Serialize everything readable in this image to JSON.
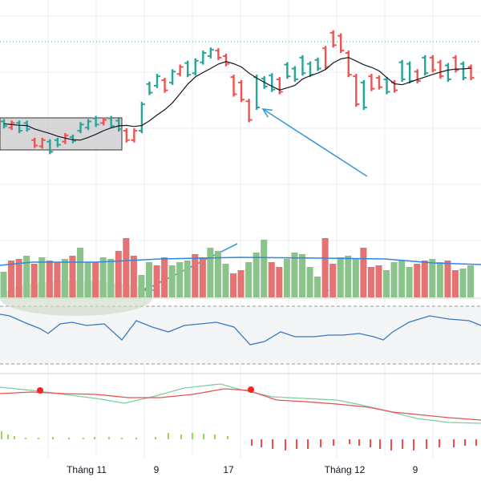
{
  "colors": {
    "up": "#26a69a",
    "down": "#ef5350",
    "vol_up": "#8bc48a",
    "vol_down": "#e57373",
    "ma": "#131722",
    "vol_ma": "#2f8ae0",
    "osc": "#3a78c2",
    "macd": "#e55353",
    "signal": "#7ccf9f",
    "arrow": "#3a9ad9",
    "hist_up": "#7ed321",
    "hist_down": "#ff1a1a",
    "grid": "#e9ecef",
    "dotline": "#3bb8a6",
    "marker": "#ff2020"
  },
  "chart_data": {
    "type": "ohlc",
    "x_labels": [
      "Tháng 11",
      "9",
      "17",
      "Tháng 12",
      "9"
    ],
    "bars": [
      {
        "o": 150,
        "c": 156,
        "up": true
      },
      {
        "o": 158,
        "c": 152,
        "up": false
      },
      {
        "o": 152,
        "c": 162,
        "up": true
      },
      {
        "o": 152,
        "c": 160,
        "up": true
      },
      {
        "o": 174,
        "c": 181,
        "up": false
      },
      {
        "o": 182,
        "c": 174,
        "up": false
      },
      {
        "o": 176,
        "c": 189,
        "up": true
      },
      {
        "o": 174,
        "c": 180,
        "up": true
      },
      {
        "o": 176,
        "c": 168,
        "up": false
      },
      {
        "o": 170,
        "c": 175,
        "up": true
      },
      {
        "o": 162,
        "c": 154,
        "up": true
      },
      {
        "o": 158,
        "c": 150,
        "up": true
      },
      {
        "o": 146,
        "c": 154,
        "up": true
      },
      {
        "o": 152,
        "c": 148,
        "up": false
      },
      {
        "o": 146,
        "c": 156,
        "up": true
      },
      {
        "o": 149,
        "c": 160,
        "up": true
      },
      {
        "o": 162,
        "c": 174,
        "up": false
      },
      {
        "o": 174,
        "c": 162,
        "up": false
      },
      {
        "o": 162,
        "c": 128,
        "up": true
      },
      {
        "o": 102,
        "c": 113,
        "up": true
      },
      {
        "o": 104,
        "c": 92,
        "up": true
      },
      {
        "o": 97,
        "c": 110,
        "up": false
      },
      {
        "o": 100,
        "c": 86,
        "up": true
      },
      {
        "o": 89,
        "c": 80,
        "up": false
      },
      {
        "o": 75,
        "c": 90,
        "up": true
      },
      {
        "o": 88,
        "c": 72,
        "up": true
      },
      {
        "o": 74,
        "c": 62,
        "up": true
      },
      {
        "o": 66,
        "c": 58,
        "up": true
      },
      {
        "o": 59,
        "c": 68,
        "up": false
      },
      {
        "o": 66,
        "c": 76,
        "up": false
      },
      {
        "o": 93,
        "c": 115,
        "up": false
      },
      {
        "o": 100,
        "c": 122,
        "up": false
      },
      {
        "o": 124,
        "c": 148,
        "up": false
      },
      {
        "o": 93,
        "c": 132,
        "up": true
      },
      {
        "o": 95,
        "c": 105,
        "up": true
      },
      {
        "o": 91,
        "c": 109,
        "up": true
      },
      {
        "o": 96,
        "c": 112,
        "up": false
      },
      {
        "o": 77,
        "c": 92,
        "up": true
      },
      {
        "o": 82,
        "c": 96,
        "up": true
      },
      {
        "o": 68,
        "c": 88,
        "up": true
      },
      {
        "o": 76,
        "c": 90,
        "up": true
      },
      {
        "o": 71,
        "c": 82,
        "up": true
      },
      {
        "o": 56,
        "c": 80,
        "up": false
      },
      {
        "o": 36,
        "c": 52,
        "up": false
      },
      {
        "o": 40,
        "c": 59,
        "up": false
      },
      {
        "o": 62,
        "c": 90,
        "up": false
      },
      {
        "o": 92,
        "c": 128,
        "up": false
      },
      {
        "o": 100,
        "c": 132,
        "up": true
      },
      {
        "o": 92,
        "c": 108,
        "up": false
      },
      {
        "o": 94,
        "c": 106,
        "up": false
      },
      {
        "o": 96,
        "c": 112,
        "up": true
      },
      {
        "o": 100,
        "c": 110,
        "up": false
      },
      {
        "o": 74,
        "c": 96,
        "up": true
      },
      {
        "o": 76,
        "c": 98,
        "up": true
      },
      {
        "o": 86,
        "c": 98,
        "up": false
      },
      {
        "o": 68,
        "c": 88,
        "up": true
      },
      {
        "o": 68,
        "c": 84,
        "up": false
      },
      {
        "o": 74,
        "c": 92,
        "up": false
      },
      {
        "o": 78,
        "c": 96,
        "up": true
      },
      {
        "o": 68,
        "c": 84,
        "up": false
      },
      {
        "o": 76,
        "c": 94,
        "up": true
      },
      {
        "o": 80,
        "c": 94,
        "up": false
      }
    ]
  }
}
